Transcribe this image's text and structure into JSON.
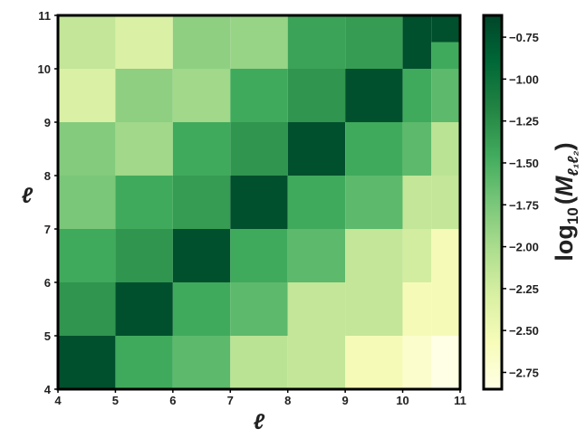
{
  "chart_data": {
    "type": "heatmap",
    "xlabel": "ℓ",
    "ylabel": "ℓ",
    "x_ticks": [
      "4",
      "5",
      "6",
      "7",
      "8",
      "9",
      "10",
      "11"
    ],
    "y_ticks": [
      "4",
      "5",
      "6",
      "7",
      "8",
      "9",
      "10",
      "11"
    ],
    "xlim": [
      4,
      11
    ],
    "ylim": [
      4,
      11
    ],
    "x_cells": [
      4,
      5,
      6,
      7,
      8,
      9,
      10
    ],
    "y_cells": [
      4,
      5,
      6,
      7,
      8,
      9,
      10
    ],
    "values": [
      [
        -0.7,
        -1.45,
        -1.6,
        -2.1,
        -2.15,
        -2.55,
        -2.7
      ],
      [
        -1.3,
        -0.7,
        -1.45,
        -1.6,
        -2.15,
        -2.15,
        -2.55
      ],
      [
        -1.45,
        -1.3,
        -0.7,
        -1.45,
        -1.6,
        -2.15,
        -2.25
      ],
      [
        -1.75,
        -1.45,
        -1.35,
        -0.7,
        -1.45,
        -1.6,
        -2.15
      ],
      [
        -1.8,
        -1.95,
        -1.45,
        -1.3,
        -0.7,
        -1.45,
        -1.6
      ],
      [
        -2.3,
        -1.85,
        -1.95,
        -1.45,
        -1.3,
        -0.7,
        -1.45
      ],
      [
        -2.15,
        -2.3,
        -1.85,
        -1.9,
        -1.4,
        -1.35,
        -0.7
      ]
    ],
    "edge_column": {
      "x_range": [
        10.5,
        11
      ],
      "values": [
        -2.85,
        -2.55,
        -2.55,
        -2.15,
        -2.1,
        -1.6,
        -1.45,
        -0.7
      ]
    },
    "colorbar": {
      "label": "log₁₀(M_ℓ₁ℓ₂)",
      "label_main": "log",
      "label_sub": "10",
      "label_open": "(",
      "label_symbol": "M",
      "label_subscript": "ℓ₁ℓ₂",
      "label_close": ")",
      "range": [
        -2.85,
        -0.62
      ],
      "ticks": [
        -0.75,
        -1.0,
        -1.25,
        -1.5,
        -1.75,
        -2.0,
        -2.25,
        -2.5,
        -2.75
      ],
      "tick_labels": [
        "−0.75",
        "−1.00",
        "−1.25",
        "−1.50",
        "−1.75",
        "−2.00",
        "−2.25",
        "−2.50",
        "−2.75"
      ]
    },
    "colormap": "YlGn",
    "grid": false,
    "legend": "none"
  }
}
